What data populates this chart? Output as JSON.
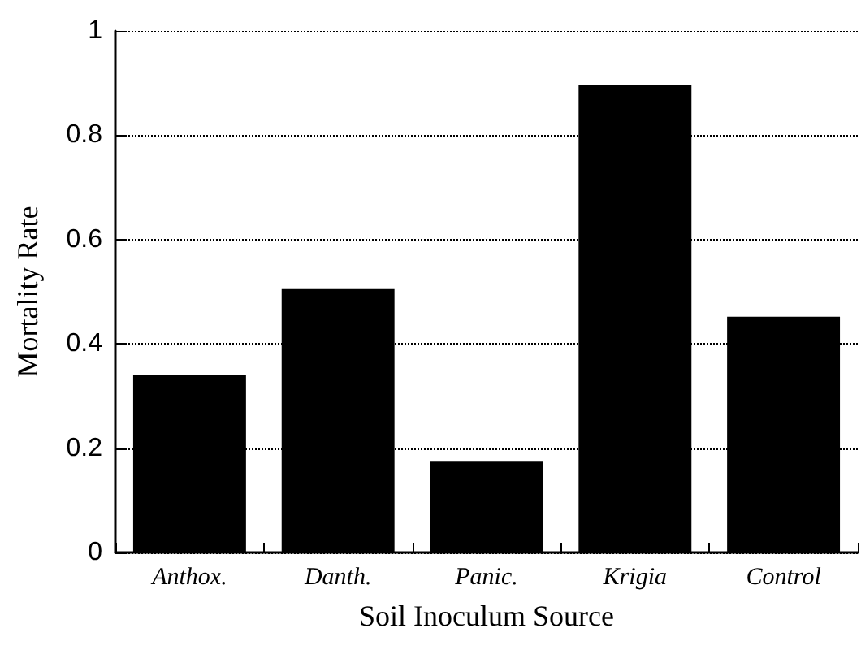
{
  "chart_data": {
    "type": "bar",
    "xlabel": "Soil Inoculum Source",
    "ylabel": "Mortality Rate",
    "categories": [
      "Anthox.",
      "Danth.",
      "Panic.",
      "Krigia",
      "Control"
    ],
    "values": [
      0.34,
      0.505,
      0.174,
      0.897,
      0.452
    ],
    "color": "#000000",
    "ylim": [
      0,
      1
    ],
    "yticks": [
      0,
      0.2,
      0.4,
      0.6,
      0.8,
      1
    ],
    "grid": "y"
  }
}
